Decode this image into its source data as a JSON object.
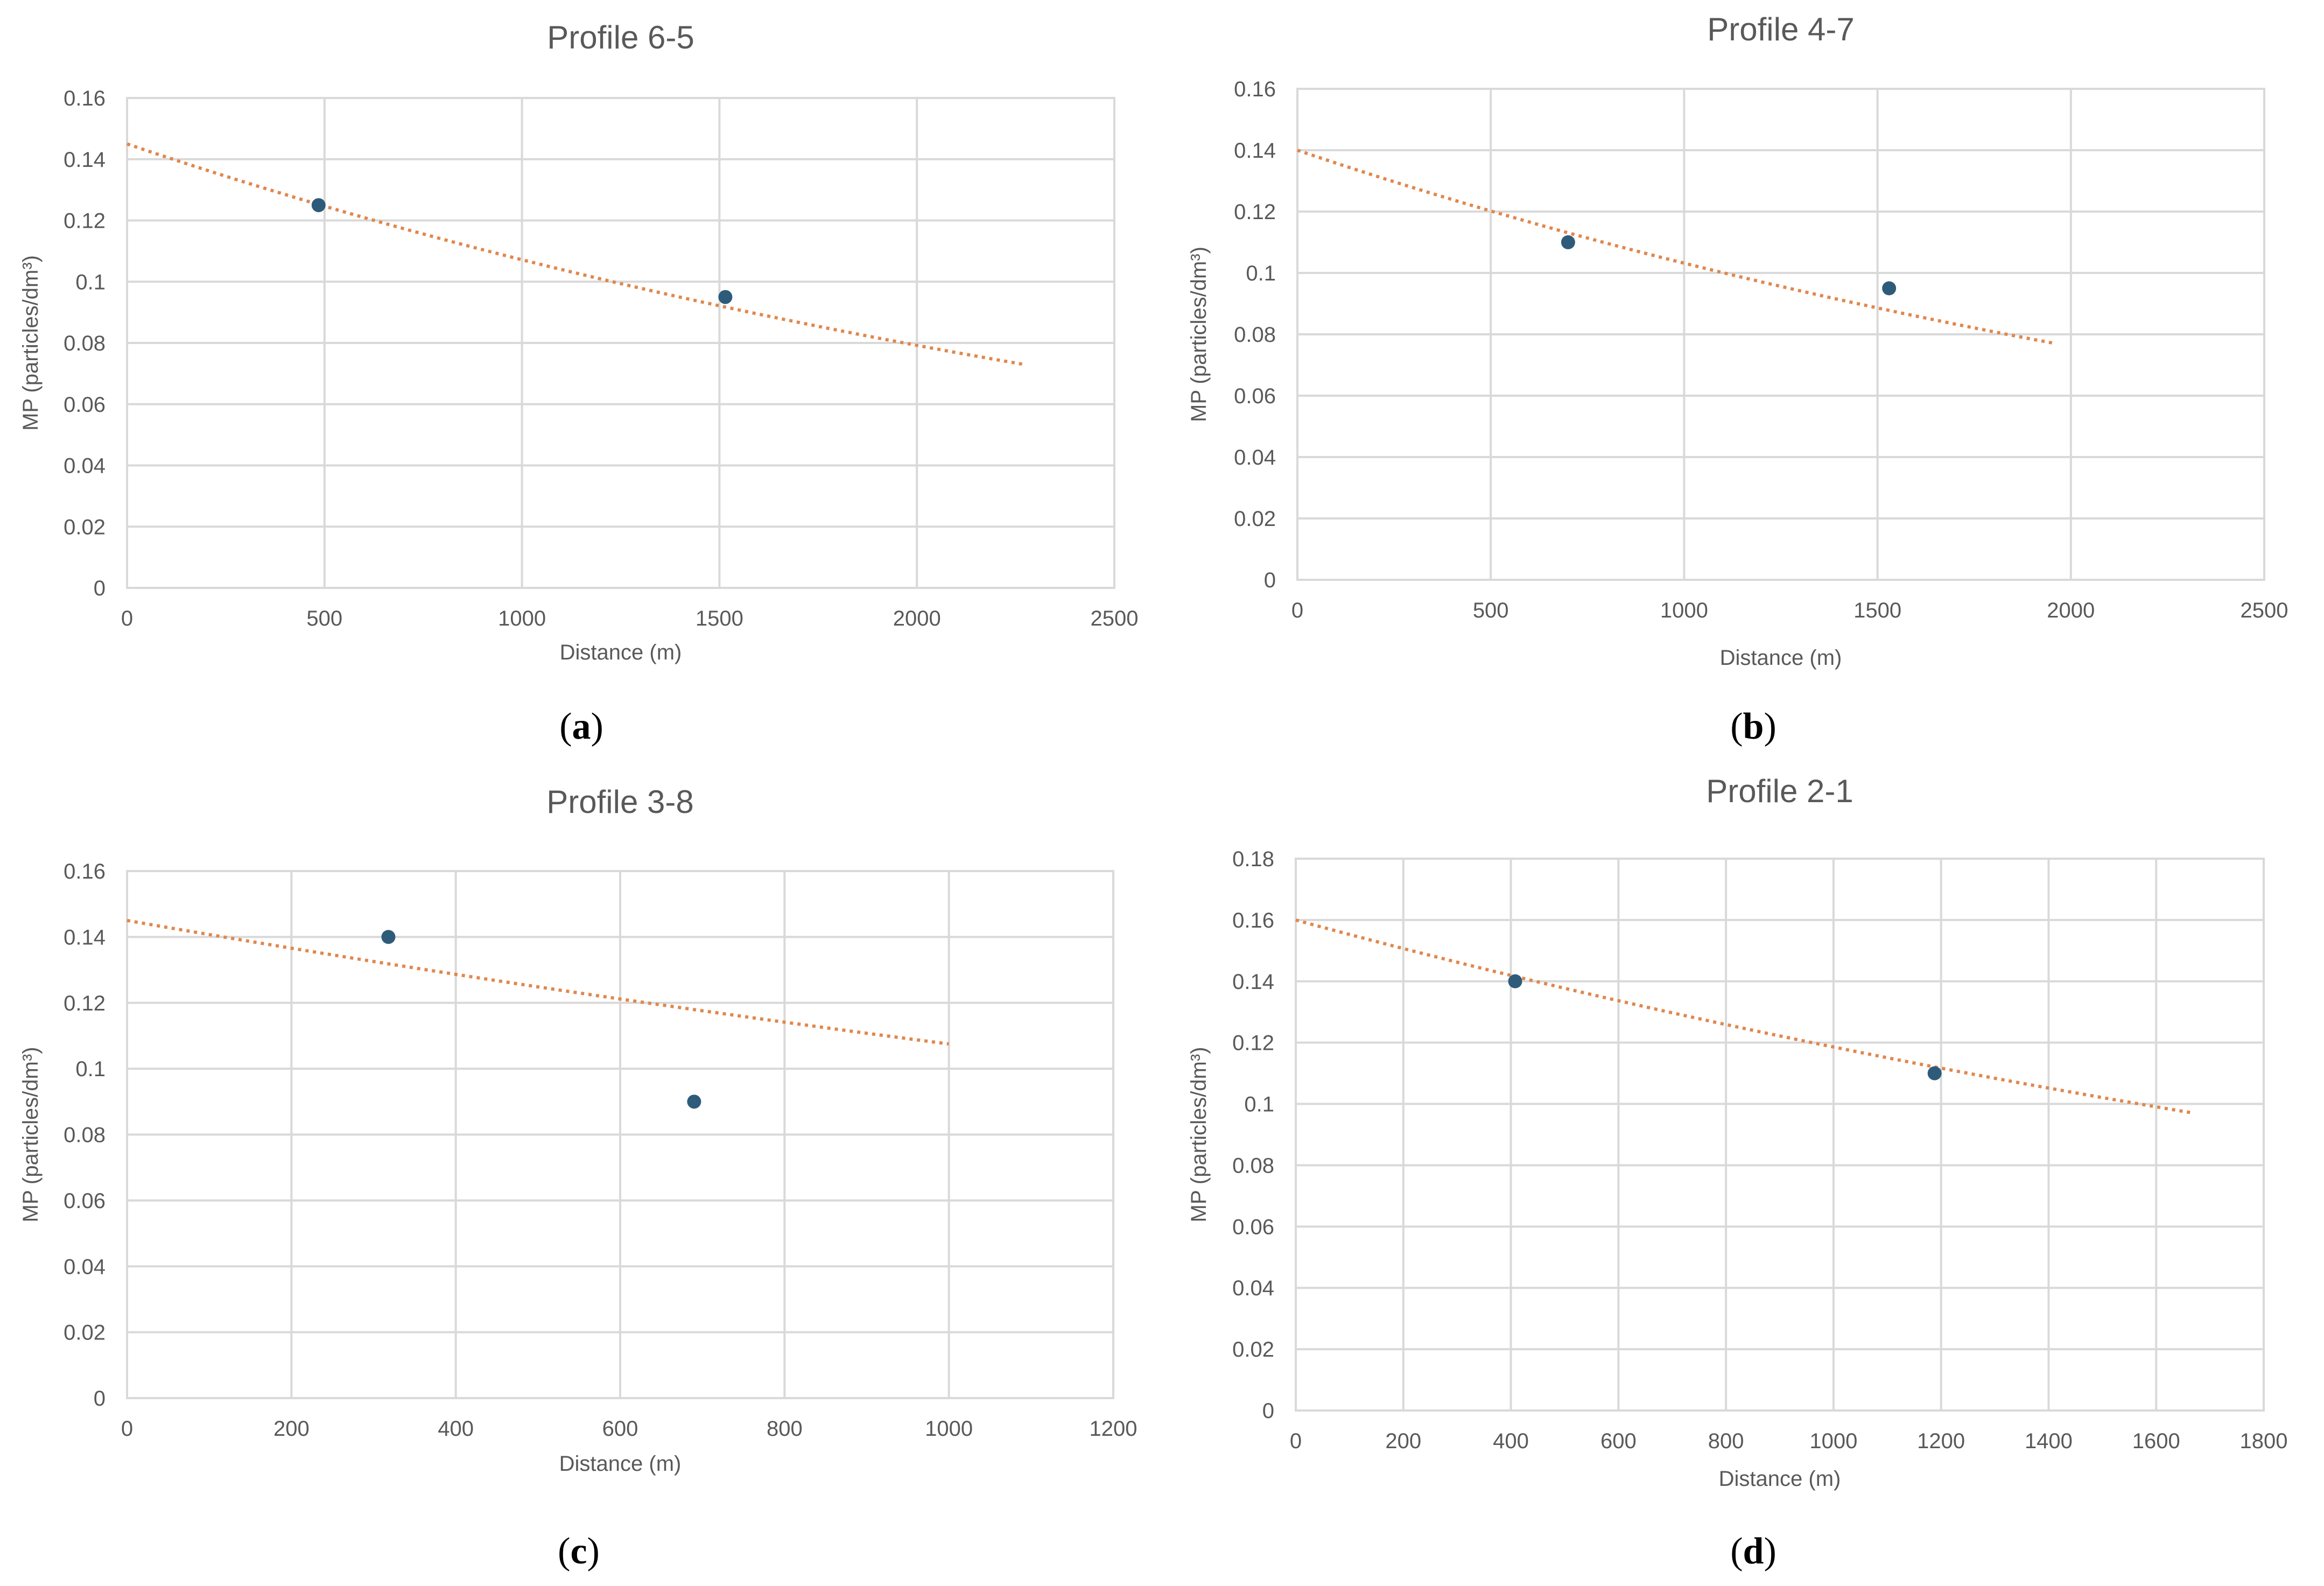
{
  "chart_data": [
    {
      "type": "scatter",
      "panel": "a",
      "title": "Profile 6-5",
      "xlabel": "Distance (m)",
      "ylabel": "MP (particles/dm³)",
      "xlim": [
        0,
        2500
      ],
      "ylim": [
        0,
        0.16
      ],
      "xticks": [
        0,
        500,
        1000,
        1500,
        2000,
        2500
      ],
      "yticks": [
        0,
        0.02,
        0.04,
        0.06,
        0.08,
        0.1,
        0.12,
        0.14,
        0.16
      ],
      "xtick_labels": [
        "0",
        "500",
        "1000",
        "1500",
        "2000",
        "2500"
      ],
      "ytick_labels": [
        "0",
        "0.02",
        "0.04",
        "0.06",
        "0.08",
        "0.1",
        "0.12",
        "0.14",
        "0.16"
      ],
      "points": [
        {
          "x": 485,
          "y": 0.125
        },
        {
          "x": 1515,
          "y": 0.095
        }
      ],
      "trendline": {
        "type": "exponential",
        "x_start": 0,
        "x_end": 2270,
        "y_start": 0.145,
        "y_end": 0.073,
        "style": "dotted"
      },
      "grid": true
    },
    {
      "type": "scatter",
      "panel": "b",
      "title": "Profile 4-7",
      "xlabel": "Distance (m)",
      "ylabel": "MP (particles/dm³)",
      "xlim": [
        0,
        2500
      ],
      "ylim": [
        0,
        0.16
      ],
      "xticks": [
        0,
        500,
        1000,
        1500,
        2000,
        2500
      ],
      "yticks": [
        0,
        0.02,
        0.04,
        0.06,
        0.08,
        0.1,
        0.12,
        0.14,
        0.16
      ],
      "xtick_labels": [
        "0",
        "500",
        "1000",
        "1500",
        "2000",
        "2500"
      ],
      "ytick_labels": [
        "0",
        "0.02",
        "0.04",
        "0.06",
        "0.08",
        "0.1",
        "0.12",
        "0.14",
        "0.16"
      ],
      "points": [
        {
          "x": 700,
          "y": 0.11
        },
        {
          "x": 1530,
          "y": 0.095
        }
      ],
      "trendline": {
        "type": "exponential",
        "x_start": 0,
        "x_end": 1960,
        "y_start": 0.14,
        "y_end": 0.077,
        "style": "dotted"
      },
      "grid": true
    },
    {
      "type": "scatter",
      "panel": "c",
      "title": "Profile 3-8",
      "xlabel": "Distance (m)",
      "ylabel": "MP (particles/dm³)",
      "xlim": [
        0,
        1200
      ],
      "ylim": [
        0,
        0.16
      ],
      "xticks": [
        0,
        200,
        400,
        600,
        800,
        1000,
        1200
      ],
      "yticks": [
        0,
        0.02,
        0.04,
        0.06,
        0.08,
        0.1,
        0.12,
        0.14,
        0.16
      ],
      "xtick_labels": [
        "0",
        "200",
        "400",
        "600",
        "800",
        "1000",
        "1200"
      ],
      "ytick_labels": [
        "0",
        "0.02",
        "0.04",
        "0.06",
        "0.08",
        "0.1",
        "0.12",
        "0.14",
        "0.16"
      ],
      "points": [
        {
          "x": 318,
          "y": 0.14
        },
        {
          "x": 690,
          "y": 0.09
        }
      ],
      "trendline": {
        "type": "exponential",
        "x_start": 0,
        "x_end": 1000,
        "y_start": 0.145,
        "y_end": 0.1075,
        "style": "dotted"
      },
      "grid": true
    },
    {
      "type": "scatter",
      "panel": "d",
      "title": "Profile 2-1",
      "xlabel": "Distance (m)",
      "ylabel": "MP (particles/dm³)",
      "xlim": [
        0,
        1800
      ],
      "ylim": [
        0,
        0.18
      ],
      "xticks": [
        0,
        200,
        400,
        600,
        800,
        1000,
        1200,
        1400,
        1600,
        1800
      ],
      "yticks": [
        0,
        0.02,
        0.04,
        0.06,
        0.08,
        0.1,
        0.12,
        0.14,
        0.16,
        0.18
      ],
      "xtick_labels": [
        "0",
        "200",
        "400",
        "600",
        "800",
        "1000",
        "1200",
        "1400",
        "1600",
        "1800"
      ],
      "ytick_labels": [
        "0",
        "0.02",
        "0.04",
        "0.06",
        "0.08",
        "0.1",
        "0.12",
        "0.14",
        "0.16",
        "0.18"
      ],
      "points": [
        {
          "x": 408,
          "y": 0.14
        },
        {
          "x": 1188,
          "y": 0.11
        }
      ],
      "trendline": {
        "type": "exponential",
        "x_start": 0,
        "x_end": 1670,
        "y_start": 0.16,
        "y_end": 0.097,
        "style": "dotted"
      },
      "grid": true
    }
  ],
  "captions": [
    "a",
    "b",
    "c",
    "d"
  ],
  "colors": {
    "point": "#2e5b7a",
    "trendline": "#e0874d",
    "grid": "#d9d9d9",
    "text": "#595959"
  }
}
